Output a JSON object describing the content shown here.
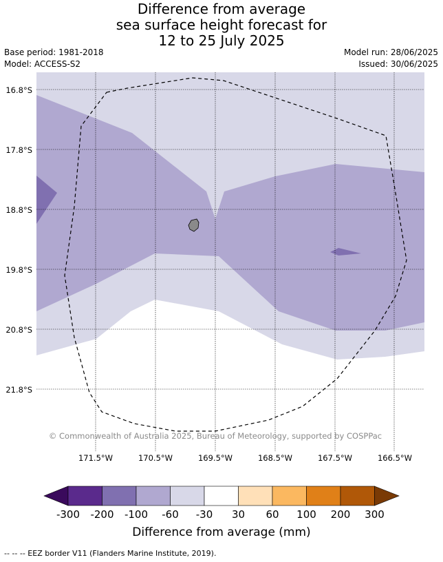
{
  "title": {
    "line1": "Difference from average",
    "line2": "sea surface height forecast for",
    "line3": "12 to 25 July 2025"
  },
  "meta": {
    "base_period": "Base period: 1981-2018",
    "model": "Model: ACCESS-S2",
    "model_run": "Model run: 28/06/2025",
    "issued": "Issued: 30/06/2025"
  },
  "map": {
    "lat_labels": [
      "16.8°S",
      "17.8°S",
      "18.8°S",
      "19.8°S",
      "20.8°S",
      "21.8°S"
    ],
    "lon_labels": [
      "171.5°W",
      "170.5°W",
      "169.5°W",
      "168.5°W",
      "167.5°W",
      "166.5°W"
    ],
    "copyright": "© Commonwealth of Australia 2025, Bureau of Meteorology, supported by COSPPac"
  },
  "colorbar": {
    "title": "Difference from average (mm)",
    "labels": [
      "-300",
      "-200",
      "-100",
      "-60",
      "-30",
      "30",
      "60",
      "100",
      "200",
      "300"
    ],
    "colors": [
      "#3a0a5c",
      "#5a2a8c",
      "#8070b0",
      "#b0a8d0",
      "#d8d8e8",
      "#ffffff",
      "#ffe0b8",
      "#fbb860",
      "#e08018",
      "#b05808",
      "#7a3a05"
    ]
  },
  "footer": "--  --  -- EEZ border V11 (Flanders Marine Institute, 2019)."
}
